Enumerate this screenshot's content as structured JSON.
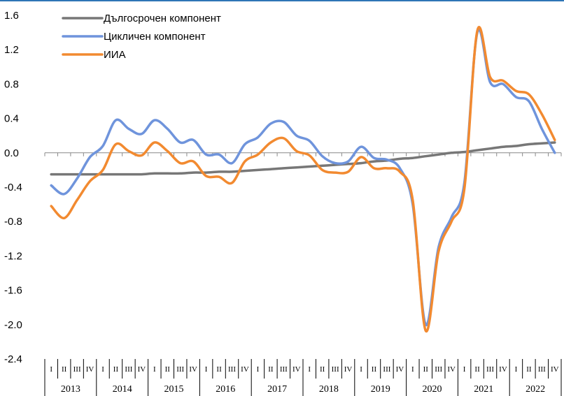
{
  "chart_data": {
    "type": "line",
    "title": "",
    "xlabel": "",
    "ylabel": "",
    "ylim": [
      -2.4,
      1.6
    ],
    "y_ticks": [
      "1.6",
      "1.2",
      "0.8",
      "0.4",
      "0.0",
      "-0.4",
      "-0.8",
      "-1.2",
      "-1.6",
      "-2.0",
      "-2.4"
    ],
    "quarter_labels": [
      "I",
      "II",
      "III",
      "IV"
    ],
    "years": [
      "2013",
      "2014",
      "2015",
      "2016",
      "2017",
      "2018",
      "2019",
      "2020",
      "2021",
      "2022"
    ],
    "legend_position": "top-left",
    "grid": false,
    "series": [
      {
        "name": "Дългосрочен компонент",
        "color": "#777777",
        "values": [
          -0.25,
          -0.25,
          -0.25,
          -0.25,
          -0.25,
          -0.25,
          -0.25,
          -0.25,
          -0.24,
          -0.24,
          -0.24,
          -0.23,
          -0.23,
          -0.22,
          -0.22,
          -0.21,
          -0.2,
          -0.19,
          -0.18,
          -0.17,
          -0.16,
          -0.15,
          -0.14,
          -0.13,
          -0.12,
          -0.1,
          -0.09,
          -0.07,
          -0.06,
          -0.04,
          -0.02,
          0.0,
          0.01,
          0.03,
          0.05,
          0.07,
          0.08,
          0.1,
          0.11,
          0.12
        ]
      },
      {
        "name": "Цикличен компонент",
        "color": "#6f94dc",
        "values": [
          -0.38,
          -0.48,
          -0.3,
          -0.05,
          0.08,
          0.38,
          0.28,
          0.22,
          0.38,
          0.28,
          0.12,
          0.15,
          -0.02,
          -0.02,
          -0.12,
          0.1,
          0.18,
          0.34,
          0.36,
          0.2,
          0.14,
          -0.04,
          -0.12,
          -0.1,
          0.07,
          -0.06,
          -0.08,
          -0.18,
          -0.6,
          -2.0,
          -1.1,
          -0.75,
          -0.35,
          1.4,
          0.82,
          0.8,
          0.65,
          0.6,
          0.28,
          0.0
        ]
      },
      {
        "name": "ИИА",
        "color": "#f28a30",
        "values": [
          -0.62,
          -0.76,
          -0.55,
          -0.33,
          -0.2,
          0.1,
          0.02,
          -0.03,
          0.12,
          0.02,
          -0.12,
          -0.1,
          -0.27,
          -0.28,
          -0.35,
          -0.1,
          -0.02,
          0.12,
          0.17,
          0.02,
          -0.03,
          -0.2,
          -0.23,
          -0.22,
          -0.05,
          -0.18,
          -0.18,
          -0.22,
          -0.55,
          -2.07,
          -1.15,
          -0.8,
          -0.42,
          1.42,
          0.88,
          0.84,
          0.72,
          0.68,
          0.45,
          0.15
        ]
      }
    ]
  }
}
